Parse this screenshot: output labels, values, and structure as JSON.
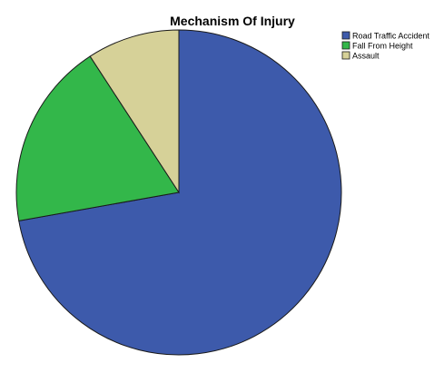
{
  "chart_data": {
    "type": "pie",
    "title": "Mechanism Of Injury",
    "legend_position": "top-right",
    "start_angle_deg": 0,
    "direction": "clockwise",
    "slices": [
      {
        "label": "Road Traffic Accident",
        "value": 72.2,
        "color": "#3d5aab"
      },
      {
        "label": "Fall From Height",
        "value": 18.6,
        "color": "#33b74a"
      },
      {
        "label": "Assault",
        "value": 9.2,
        "color": "#d6d198"
      }
    ]
  }
}
